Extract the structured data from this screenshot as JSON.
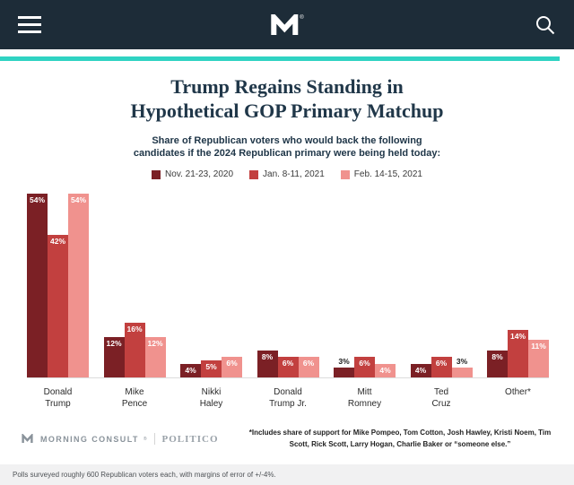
{
  "header": {
    "logo_mark": "®"
  },
  "title": "Trump Regains Standing in\nHypothetical GOP Primary Matchup",
  "subtitle": "Share of Republican voters who would back the following\ncandidates if the 2024 Republican primary were being held today:",
  "chart_data": {
    "type": "bar",
    "title": "Trump Regains Standing in Hypothetical GOP Primary Matchup",
    "subtitle": "Share of Republican voters who would back the following candidates if the 2024 Republican primary were being held today:",
    "categories": [
      "Donald\nTrump",
      "Mike\nPence",
      "Nikki\nHaley",
      "Donald\nTrump Jr.",
      "Mitt\nRomney",
      "Ted\nCruz",
      "Other*"
    ],
    "series": [
      {
        "name": "Nov. 21-23, 2020",
        "color": "#7b2025",
        "values": [
          54,
          12,
          4,
          8,
          3,
          4,
          8
        ]
      },
      {
        "name": "Jan. 8-11, 2021",
        "color": "#c2403f",
        "values": [
          42,
          16,
          5,
          6,
          6,
          6,
          14
        ]
      },
      {
        "name": "Feb. 14-15, 2021",
        "color": "#f0928e",
        "values": [
          54,
          12,
          6,
          6,
          4,
          3,
          11
        ]
      }
    ],
    "value_suffix": "%",
    "ylim": [
      0,
      55
    ],
    "grid": false,
    "legend_position": "top",
    "label_outside_threshold": 4
  },
  "footer": {
    "morning_consult": "MORNING CONSULT",
    "mc_mark": "®",
    "politico": "POLITICO",
    "footnote": "*Includes share of support for Mike Pompeo, Tom Cotton, Josh Hawley, Kristi Noem, Tim Scott, Rick Scott, Larry Hogan, Charlie Baker or “someone else.”"
  },
  "bottom_bar": {
    "text": "Polls surveyed roughly 600 Republican voters each, with margins of error of +/-4%."
  }
}
